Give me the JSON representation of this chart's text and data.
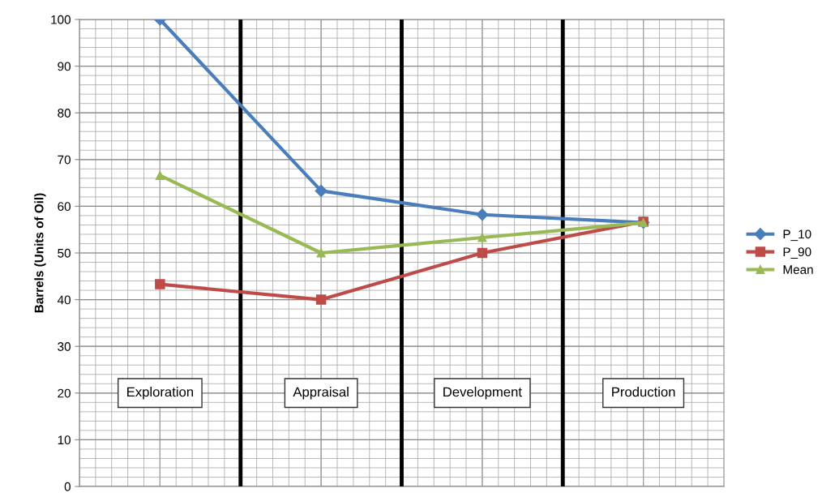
{
  "chart_data": {
    "type": "line",
    "ylabel": "Barrels (Units of Oil)",
    "categories": [
      null,
      null,
      null,
      null
    ],
    "series": [
      {
        "name": "P_10",
        "color": "#4a7ebb",
        "marker": "diamond",
        "values": [
          100,
          63.3,
          58.2,
          56.5
        ]
      },
      {
        "name": "P_90",
        "color": "#be4b48",
        "marker": "square",
        "values": [
          43.3,
          40,
          50,
          56.7
        ]
      },
      {
        "name": "Mean",
        "color": "#98b954",
        "marker": "triangle",
        "values": [
          66.6,
          50,
          53.3,
          56.5
        ]
      }
    ],
    "ylim": [
      0,
      100
    ],
    "yticks": [
      0,
      10,
      20,
      30,
      40,
      50,
      60,
      70,
      80,
      90,
      100
    ],
    "grid": true,
    "legend": "right",
    "line_style": "solid",
    "annotations": [
      "Exploration",
      "Appraisal",
      "Development",
      "Production"
    ]
  }
}
